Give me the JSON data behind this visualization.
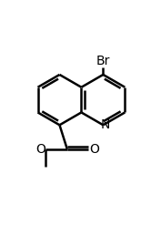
{
  "bg_color": "#ffffff",
  "bond_color": "#000000",
  "text_color": "#000000",
  "figsize": [
    1.77,
    2.69
  ],
  "dpi": 100,
  "bond_lw": 1.8,
  "font_size": 10,
  "BL": 1.0,
  "xlim": [
    -3.0,
    3.2
  ],
  "ylim": [
    -4.2,
    3.0
  ]
}
